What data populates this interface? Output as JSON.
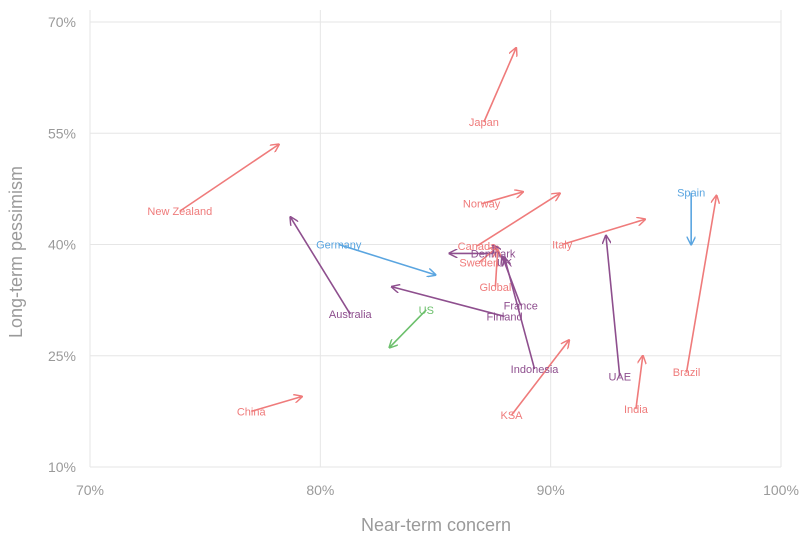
{
  "chart_data": {
    "type": "scatter",
    "subtype": "arrow",
    "xlabel": "Near-term concern",
    "ylabel": "Long-term pessimism",
    "xlim": [
      0.7,
      1.0
    ],
    "ylim": [
      0.1,
      0.7
    ],
    "x_ticks": [
      "70%",
      "80%",
      "90%",
      "100%"
    ],
    "y_ticks": [
      "10%",
      "25%",
      "40%",
      "55%",
      "70%"
    ],
    "grid": true,
    "colors": {
      "increase": "#ef7b7b",
      "decrease": "#5aa5e0",
      "mixed": "#8e4f8e",
      "green": "#6cc06c"
    },
    "series": [
      {
        "label": "Japan",
        "from": [
          0.871,
          0.565
        ],
        "to": [
          0.885,
          0.665
        ],
        "color": "increase"
      },
      {
        "label": "New Zealand",
        "from": [
          0.739,
          0.445
        ],
        "to": [
          0.782,
          0.535
        ],
        "color": "increase"
      },
      {
        "label": "Norway",
        "from": [
          0.87,
          0.455
        ],
        "to": [
          0.888,
          0.471
        ],
        "color": "increase"
      },
      {
        "label": "Spain",
        "from": [
          0.961,
          0.47
        ],
        "to": [
          0.961,
          0.4
        ],
        "color": "decrease"
      },
      {
        "label": "Germany",
        "from": [
          0.808,
          0.4
        ],
        "to": [
          0.85,
          0.359
        ],
        "color": "decrease"
      },
      {
        "label": "Italy",
        "from": [
          0.905,
          0.4
        ],
        "to": [
          0.941,
          0.434
        ],
        "color": "increase"
      },
      {
        "label": "Canada",
        "from": [
          0.868,
          0.398
        ],
        "to": [
          0.904,
          0.469
        ],
        "color": "increase"
      },
      {
        "label": "Denmark",
        "from": [
          0.875,
          0.388
        ],
        "to": [
          0.856,
          0.388
        ],
        "color": "mixed"
      },
      {
        "label": "Sweden",
        "from": [
          0.869,
          0.376
        ],
        "to": [
          0.877,
          0.397
        ],
        "color": "increase"
      },
      {
        "label": "UK",
        "from": [
          0.88,
          0.376
        ],
        "to": [
          0.875,
          0.399
        ],
        "color": "mixed"
      },
      {
        "label": "Global",
        "from": [
          0.876,
          0.343
        ],
        "to": [
          0.877,
          0.393
        ],
        "color": "increase"
      },
      {
        "label": "France",
        "from": [
          0.887,
          0.318
        ],
        "to": [
          0.879,
          0.384
        ],
        "color": "mixed"
      },
      {
        "label": "Finland",
        "from": [
          0.88,
          0.303
        ],
        "to": [
          0.831,
          0.343
        ],
        "color": "mixed"
      },
      {
        "label": "Australia",
        "from": [
          0.813,
          0.306
        ],
        "to": [
          0.787,
          0.437
        ],
        "color": "mixed"
      },
      {
        "label": "US",
        "from": [
          0.846,
          0.312
        ],
        "to": [
          0.83,
          0.261
        ],
        "color": "green"
      },
      {
        "label": "UAE",
        "from": [
          0.93,
          0.222
        ],
        "to": [
          0.924,
          0.412
        ],
        "color": "mixed"
      },
      {
        "label": "Brazil",
        "from": [
          0.959,
          0.228
        ],
        "to": [
          0.972,
          0.466
        ],
        "color": "increase"
      },
      {
        "label": "India",
        "from": [
          0.937,
          0.178
        ],
        "to": [
          0.94,
          0.25
        ],
        "color": "increase"
      },
      {
        "label": "Indonesia",
        "from": [
          0.893,
          0.232
        ],
        "to": [
          0.88,
          0.382
        ],
        "color": "mixed"
      },
      {
        "label": "KSA",
        "from": [
          0.883,
          0.17
        ],
        "to": [
          0.908,
          0.271
        ],
        "color": "increase"
      },
      {
        "label": "China",
        "from": [
          0.77,
          0.175
        ],
        "to": [
          0.792,
          0.195
        ],
        "color": "increase"
      }
    ]
  }
}
